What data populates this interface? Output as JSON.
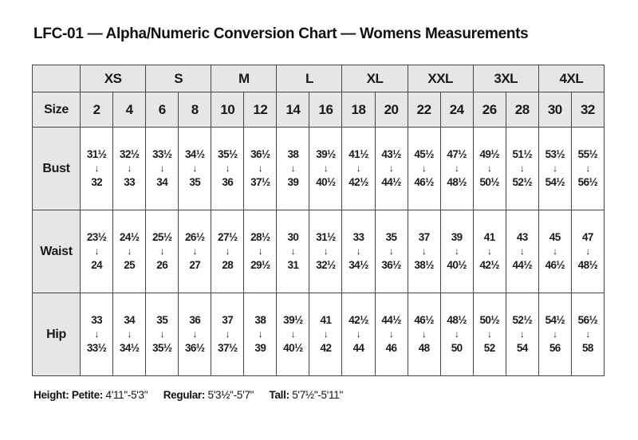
{
  "colors": {
    "background": "#ffffff",
    "cell_gray": "#e6e6e6",
    "border": "#454545",
    "text": "#1a1a1a"
  },
  "chart_data": {
    "type": "table",
    "title": "LFC-01 — Alpha/Numeric Conversion Chart — Womens Measurements",
    "arrow_icon": "↓",
    "alpha_sizes": [
      "XS",
      "S",
      "M",
      "L",
      "XL",
      "XXL",
      "3XL",
      "4XL"
    ],
    "size_row_label": "Size",
    "numeric_sizes": [
      "2",
      "4",
      "6",
      "8",
      "10",
      "12",
      "14",
      "16",
      "18",
      "20",
      "22",
      "24",
      "26",
      "28",
      "30",
      "32"
    ],
    "measurement_rows": [
      {
        "label": "Bust",
        "ranges": [
          [
            "31½",
            "32"
          ],
          [
            "32½",
            "33"
          ],
          [
            "33½",
            "34"
          ],
          [
            "34½",
            "35"
          ],
          [
            "35½",
            "36"
          ],
          [
            "36½",
            "37½"
          ],
          [
            "38",
            "39"
          ],
          [
            "39½",
            "40½"
          ],
          [
            "41½",
            "42½"
          ],
          [
            "43½",
            "44½"
          ],
          [
            "45½",
            "46½"
          ],
          [
            "47½",
            "48½"
          ],
          [
            "49½",
            "50½"
          ],
          [
            "51½",
            "52½"
          ],
          [
            "53½",
            "54½"
          ],
          [
            "55½",
            "56½"
          ]
        ]
      },
      {
        "label": "Waist",
        "ranges": [
          [
            "23½",
            "24"
          ],
          [
            "24½",
            "25"
          ],
          [
            "25½",
            "26"
          ],
          [
            "26½",
            "27"
          ],
          [
            "27½",
            "28"
          ],
          [
            "28½",
            "29½"
          ],
          [
            "30",
            "31"
          ],
          [
            "31½",
            "32½"
          ],
          [
            "33",
            "34½"
          ],
          [
            "35",
            "36½"
          ],
          [
            "37",
            "38½"
          ],
          [
            "39",
            "40½"
          ],
          [
            "41",
            "42½"
          ],
          [
            "43",
            "44½"
          ],
          [
            "45",
            "46½"
          ],
          [
            "47",
            "48½"
          ]
        ]
      },
      {
        "label": "Hip",
        "ranges": [
          [
            "33",
            "33½"
          ],
          [
            "34",
            "34½"
          ],
          [
            "35",
            "35½"
          ],
          [
            "36",
            "36½"
          ],
          [
            "37",
            "37½"
          ],
          [
            "38",
            "39"
          ],
          [
            "39½",
            "40½"
          ],
          [
            "41",
            "42"
          ],
          [
            "42½",
            "44"
          ],
          [
            "44½",
            "46"
          ],
          [
            "46½",
            "48"
          ],
          [
            "48½",
            "50"
          ],
          [
            "50½",
            "52"
          ],
          [
            "52½",
            "54"
          ],
          [
            "54½",
            "56"
          ],
          [
            "56½",
            "58"
          ]
        ]
      }
    ],
    "footer": {
      "height_label": "Height:",
      "segments": [
        {
          "label": "Petite:",
          "value": "4'11\"-5'3\""
        },
        {
          "label": "Regular:",
          "value": "5'3½\"-5'7\""
        },
        {
          "label": "Tall:",
          "value": "5'7½\"-5'11\""
        }
      ]
    }
  }
}
